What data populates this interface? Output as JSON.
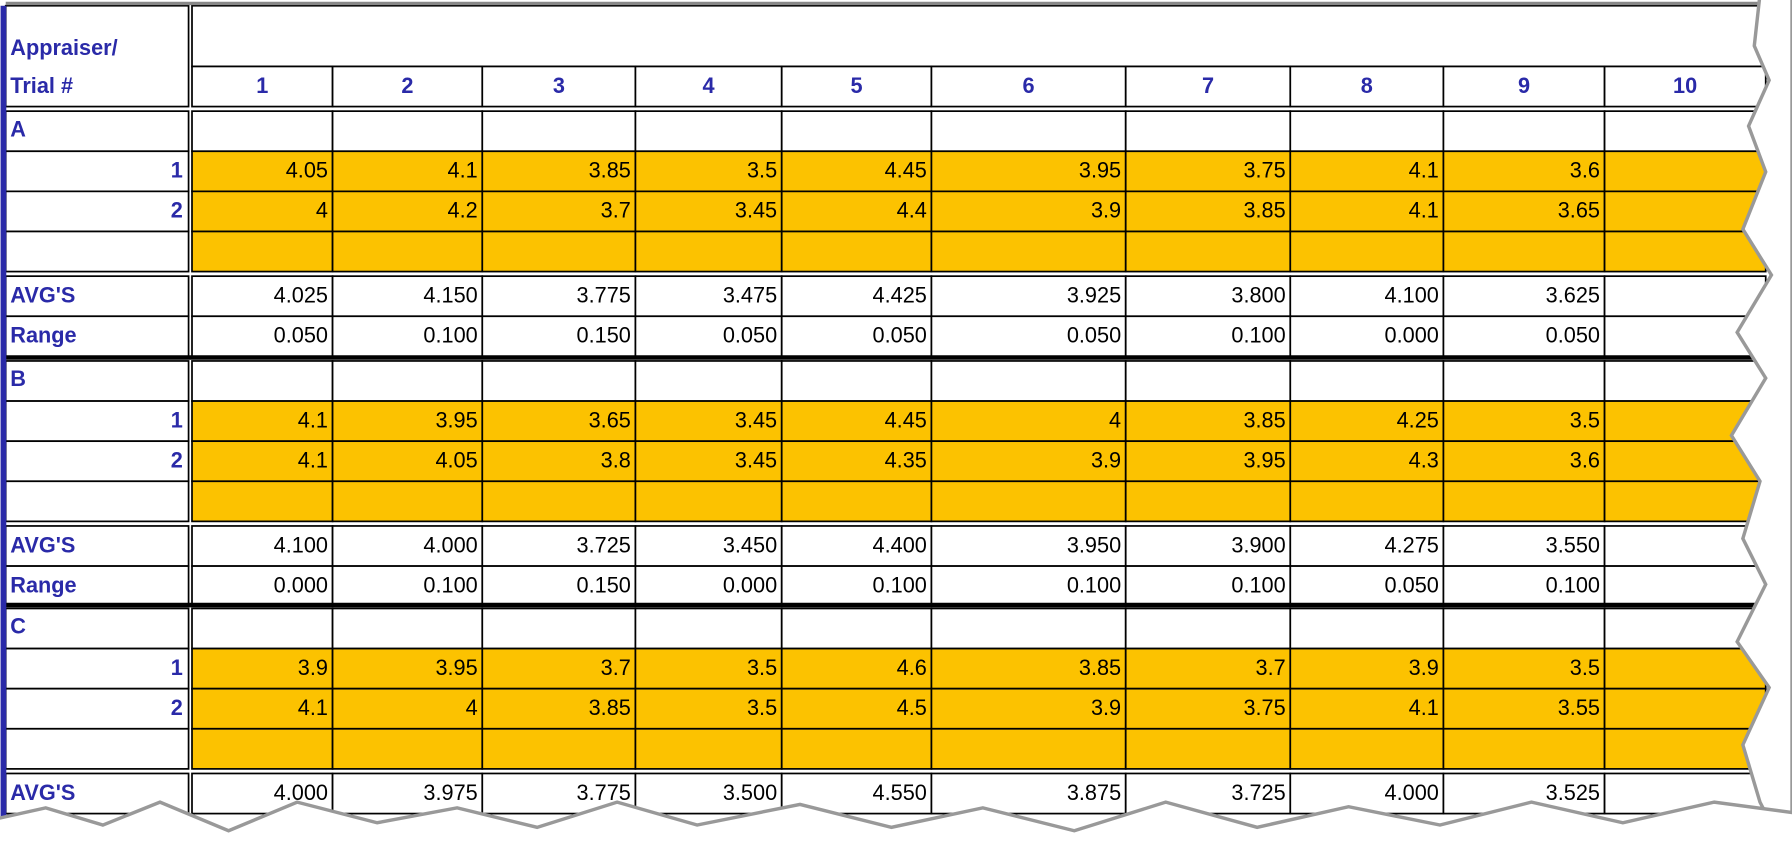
{
  "header": {
    "label_line1": "Appraiser/",
    "label_line2": "Trial #",
    "columns": [
      "1",
      "2",
      "3",
      "4",
      "5",
      "6",
      "7",
      "8",
      "9",
      "10"
    ]
  },
  "sections": [
    {
      "name": "A",
      "trials": [
        {
          "label": "1",
          "values": [
            "4.05",
            "4.1",
            "3.85",
            "3.5",
            "4.45",
            "3.95",
            "3.75",
            "4.1",
            "3.6"
          ]
        },
        {
          "label": "2",
          "values": [
            "4",
            "4.2",
            "3.7",
            "3.45",
            "4.4",
            "3.9",
            "3.85",
            "4.1",
            "3.65"
          ]
        }
      ],
      "avg_label": "AVG'S",
      "avg": [
        "4.025",
        "4.150",
        "3.775",
        "3.475",
        "4.425",
        "3.925",
        "3.800",
        "4.100",
        "3.625"
      ],
      "range_label": "Range",
      "range": [
        "0.050",
        "0.100",
        "0.150",
        "0.050",
        "0.050",
        "0.050",
        "0.100",
        "0.000",
        "0.050"
      ]
    },
    {
      "name": "B",
      "trials": [
        {
          "label": "1",
          "values": [
            "4.1",
            "3.95",
            "3.65",
            "3.45",
            "4.45",
            "4",
            "3.85",
            "4.25",
            "3.5"
          ]
        },
        {
          "label": "2",
          "values": [
            "4.1",
            "4.05",
            "3.8",
            "3.45",
            "4.35",
            "3.9",
            "3.95",
            "4.3",
            "3.6"
          ]
        }
      ],
      "avg_label": "AVG'S",
      "avg": [
        "4.100",
        "4.000",
        "3.725",
        "3.450",
        "4.400",
        "3.950",
        "3.900",
        "4.275",
        "3.550"
      ],
      "range_label": "Range",
      "range": [
        "0.000",
        "0.100",
        "0.150",
        "0.000",
        "0.100",
        "0.100",
        "0.100",
        "0.050",
        "0.100"
      ]
    },
    {
      "name": "C",
      "trials": [
        {
          "label": "1",
          "values": [
            "3.9",
            "3.95",
            "3.7",
            "3.5",
            "4.6",
            "3.85",
            "3.7",
            "3.9",
            "3.5"
          ]
        },
        {
          "label": "2",
          "values": [
            "4.1",
            "4",
            "3.85",
            "3.5",
            "4.5",
            "3.9",
            "3.75",
            "4.1",
            "3.55"
          ]
        }
      ],
      "avg_label": "AVG'S",
      "avg": [
        "4.000",
        "3.975",
        "3.775",
        "3.500",
        "4.550",
        "3.875",
        "3.725",
        "4.000",
        "3.525"
      ]
    }
  ]
}
